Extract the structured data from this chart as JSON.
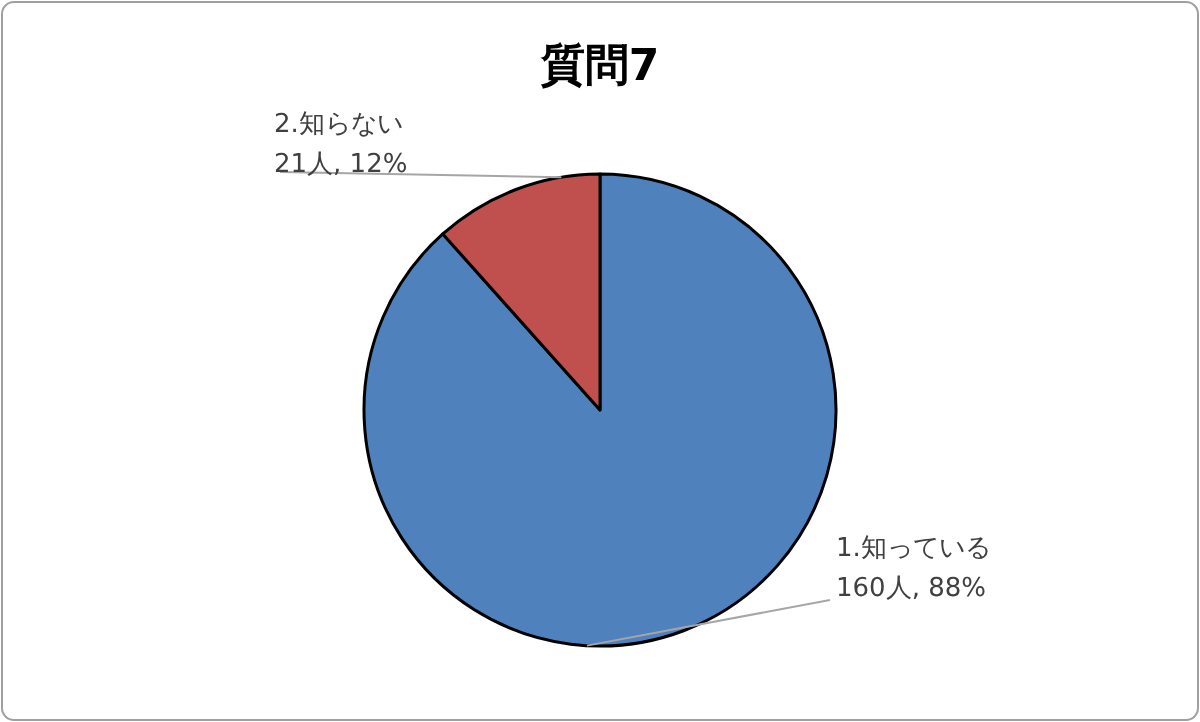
{
  "chart_data": {
    "type": "pie",
    "title": "質問7",
    "categories": [
      "1.知っている",
      "2.知らない"
    ],
    "values": [
      160,
      21
    ],
    "value_labels": [
      "160人, 88%",
      "21人, 12%"
    ],
    "colors": [
      "#4f81bd",
      "#c0504d"
    ]
  }
}
